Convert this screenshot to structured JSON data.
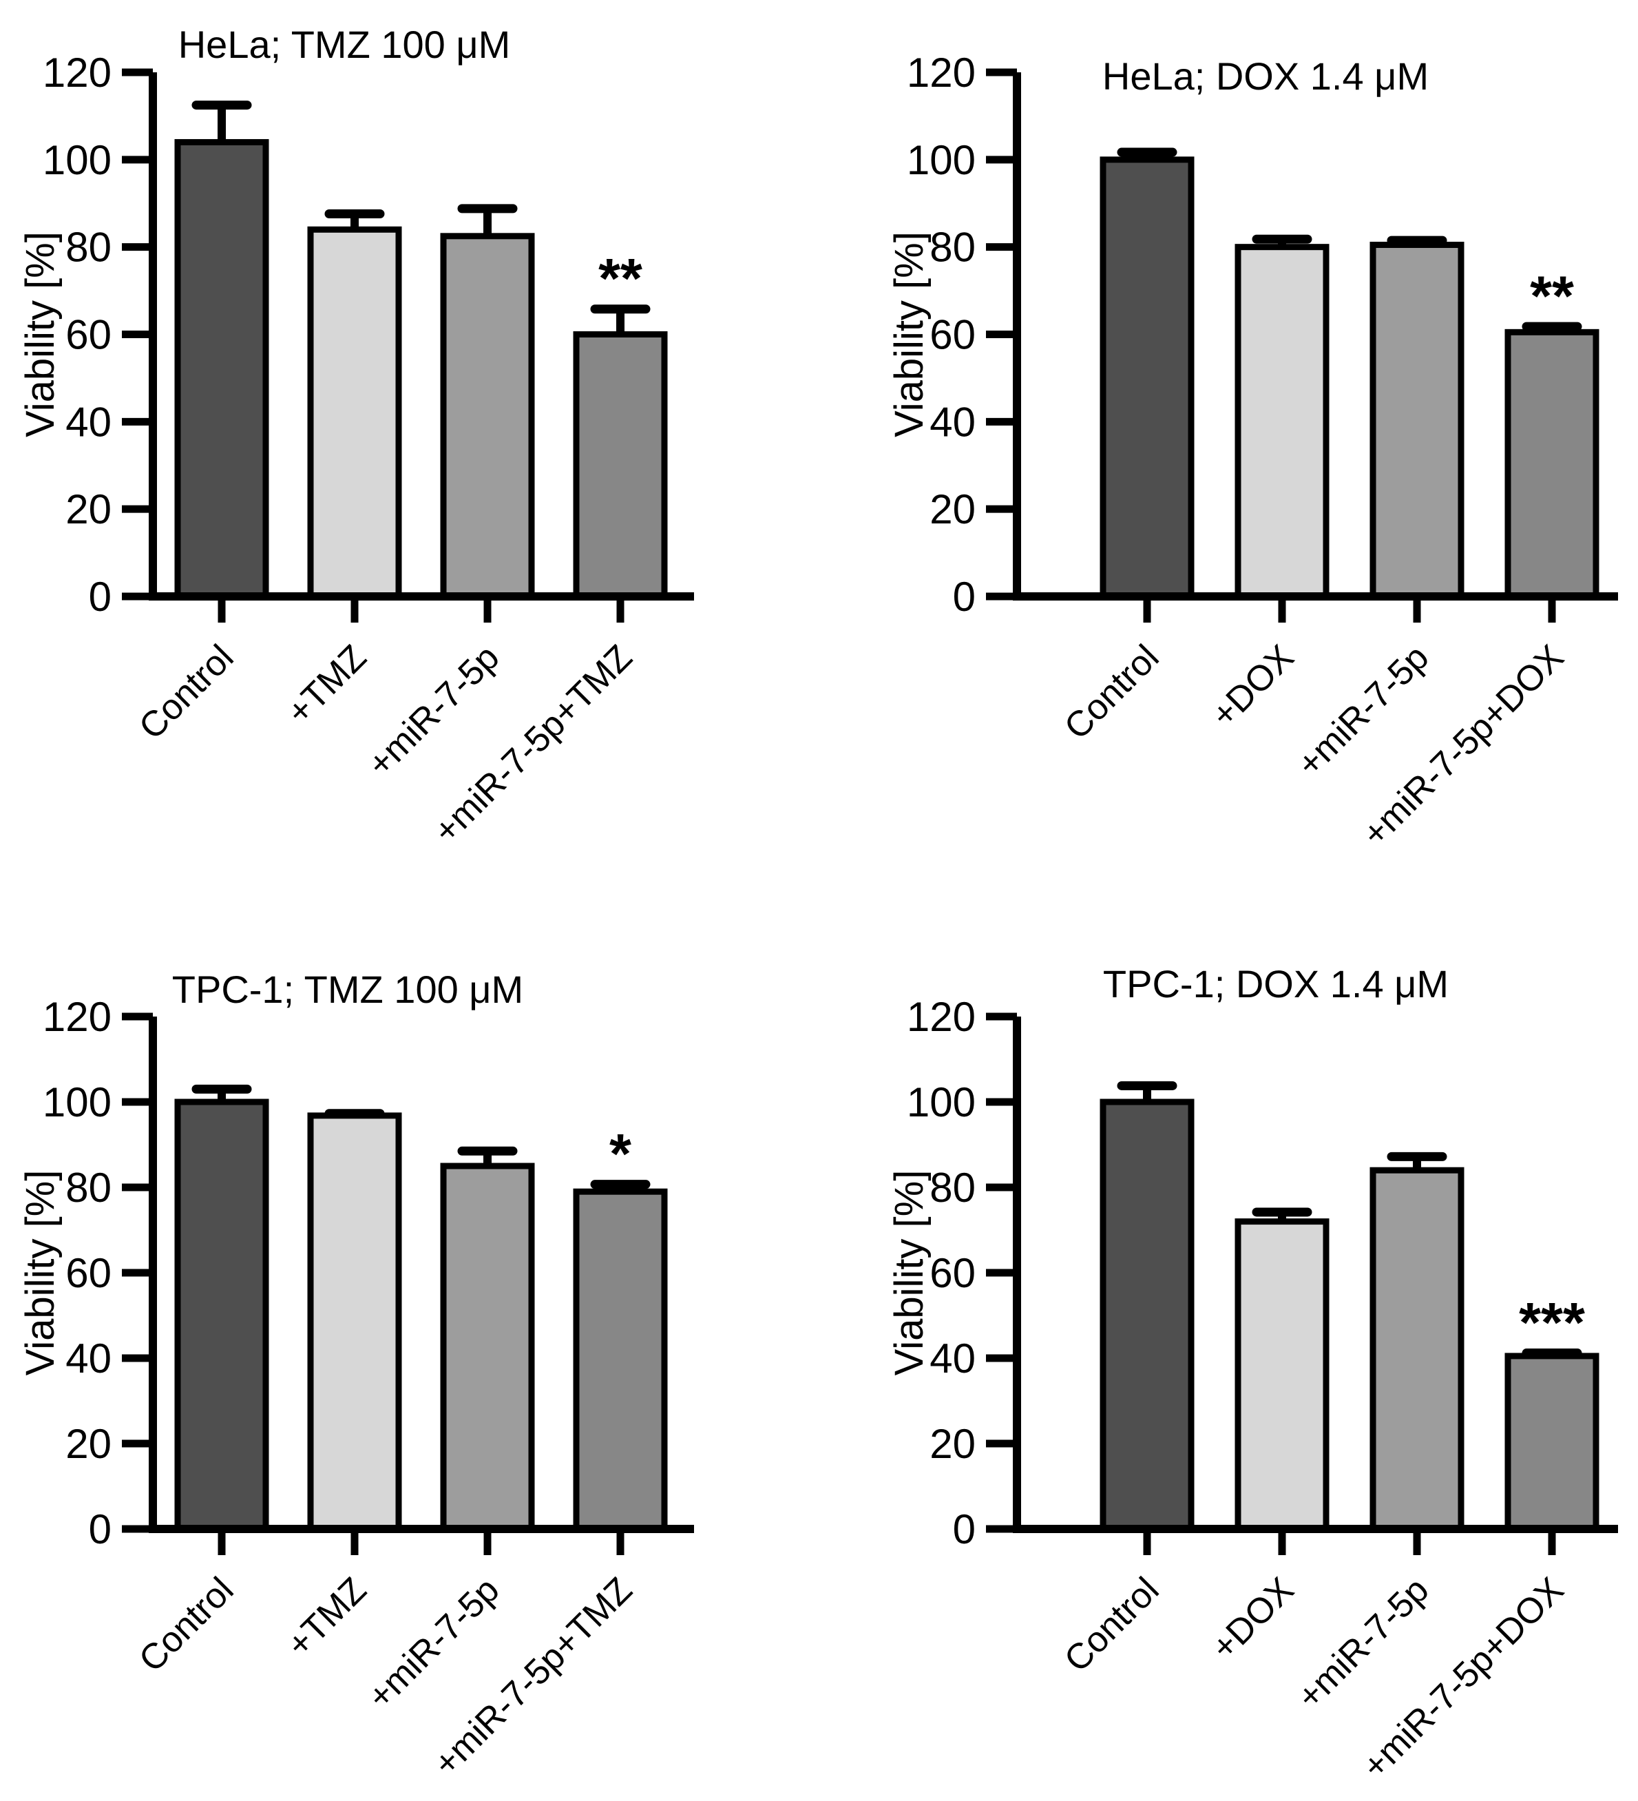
{
  "figure": {
    "background": "#ffffff",
    "text_color": "#000000",
    "axis_color": "#000000"
  },
  "chart_data": [
    {
      "id": "hela-tmz",
      "type": "bar",
      "title": "HeLa; TMZ 100 μM",
      "ylabel": "Viability [%]",
      "ylim": [
        0,
        120
      ],
      "yticks": [
        0,
        20,
        40,
        60,
        80,
        100,
        120
      ],
      "grid": false,
      "legend": "none",
      "categories": [
        "Control",
        "+TMZ",
        "+miR-7-5p",
        "+miR-7-5p+TMZ"
      ],
      "values": [
        104,
        84,
        82.5,
        60
      ],
      "errors_plus": [
        8.5,
        3.6,
        6.3,
        5.8
      ],
      "significance": [
        "",
        "",
        "",
        "**"
      ],
      "bar_colors": [
        "#4f4f4f",
        "#d7d7d7",
        "#9d9d9d",
        "#878787"
      ]
    },
    {
      "id": "hela-dox",
      "type": "bar",
      "title": "HeLa; DOX 1.4 μM",
      "ylabel": "Viability [%]",
      "ylim": [
        0,
        120
      ],
      "yticks": [
        0,
        20,
        40,
        60,
        80,
        100,
        120
      ],
      "grid": false,
      "legend": "none",
      "categories": [
        "Control",
        "+DOX",
        "+miR-7-5p",
        "+miR-7-5p+DOX"
      ],
      "values": [
        100,
        80,
        80.5,
        60.5
      ],
      "errors_plus": [
        1.7,
        1.8,
        1.0,
        1.3
      ],
      "significance": [
        "",
        "",
        "",
        "**"
      ],
      "bar_colors": [
        "#4f4f4f",
        "#d7d7d7",
        "#9d9d9d",
        "#878787"
      ]
    },
    {
      "id": "tpc1-tmz",
      "type": "bar",
      "title": "TPC-1; TMZ 100 μM",
      "ylabel": "Viability [%]",
      "ylim": [
        0,
        120
      ],
      "yticks": [
        0,
        20,
        40,
        60,
        80,
        100,
        120
      ],
      "grid": false,
      "legend": "none",
      "categories": [
        "Control",
        "+TMZ",
        "+miR-7-5p",
        "+miR-7-5p+TMZ"
      ],
      "values": [
        100,
        96.8,
        85,
        79
      ],
      "errors_plus": [
        3.0,
        0.5,
        3.5,
        1.7
      ],
      "significance": [
        "",
        "",
        "",
        "*"
      ],
      "bar_colors": [
        "#4f4f4f",
        "#d7d7d7",
        "#9d9d9d",
        "#878787"
      ]
    },
    {
      "id": "tpc1-dox",
      "type": "bar",
      "title": "TPC-1; DOX 1.4 μM",
      "ylabel": "Viability [%]",
      "ylim": [
        0,
        120
      ],
      "yticks": [
        0,
        20,
        40,
        60,
        80,
        100,
        120
      ],
      "grid": false,
      "legend": "none",
      "categories": [
        "Control",
        "+DOX",
        "+miR-7-5p",
        "+miR-7-5p+DOX"
      ],
      "values": [
        100,
        72,
        84,
        40.5
      ],
      "errors_plus": [
        3.8,
        2.2,
        3.2,
        0.7
      ],
      "significance": [
        "",
        "",
        "",
        "***"
      ],
      "bar_colors": [
        "#4f4f4f",
        "#d7d7d7",
        "#9d9d9d",
        "#878787"
      ]
    }
  ]
}
